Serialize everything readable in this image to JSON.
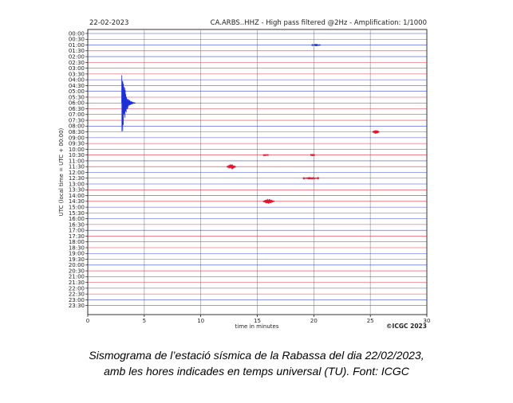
{
  "header": {
    "date": "22-02-2023",
    "station_info": "CA.ARBS..HHZ - High pass filtered @2Hz - Amplification: 1/1000"
  },
  "credit": "©ICGC 2023",
  "caption": {
    "line1": "Sismograma de l’estació sísmica de la Rabassa del dia 22/02/2023,",
    "line2": "amb les hores indicades en temps universal (TU). Font: ICGC"
  },
  "chart_data": {
    "type": "line",
    "title": "CA.ARBS..HHZ - High pass filtered @2Hz - Amplification: 1/1000",
    "xlabel": "time in minutes",
    "ylabel": "UTC (local time = UTC + 00:00)",
    "xlim": [
      0,
      30
    ],
    "x_ticks": [
      0,
      5,
      10,
      15,
      20,
      25,
      30
    ],
    "y_ticks": [
      "00:00",
      "00:30",
      "01:00",
      "01:30",
      "02:00",
      "02:30",
      "03:00",
      "03:30",
      "04:00",
      "04:30",
      "05:00",
      "05:30",
      "06:00",
      "06:30",
      "07:00",
      "07:30",
      "08:00",
      "08:30",
      "09:00",
      "09:30",
      "10:00",
      "10:30",
      "11:00",
      "11:30",
      "12:00",
      "12:30",
      "13:00",
      "13:30",
      "14:00",
      "14:30",
      "15:00",
      "15:30",
      "16:00",
      "16:30",
      "17:00",
      "17:30",
      "18:00",
      "18:30",
      "19:00",
      "19:30",
      "20:00",
      "20:30",
      "21:00",
      "21:30",
      "22:00",
      "22:30",
      "23:00",
      "23:30"
    ],
    "trace_colors": [
      "#1f2fd6",
      "#e3142f"
    ],
    "grid": true,
    "events": [
      {
        "trace": "06:00",
        "minute": 3.0,
        "amplitude_traces": 7.5,
        "duration_min": 1.2
      },
      {
        "trace": "11:30",
        "minute": 12.3,
        "amplitude_traces": 0.5,
        "duration_min": 0.8
      },
      {
        "trace": "14:30",
        "minute": 15.5,
        "amplitude_traces": 0.45,
        "duration_min": 1.0
      },
      {
        "trace": "08:30",
        "minute": 25.2,
        "amplitude_traces": 0.35,
        "duration_min": 0.6
      },
      {
        "trace": "01:00",
        "minute": 19.8,
        "amplitude_traces": 0.2,
        "duration_min": 0.8
      },
      {
        "trace": "12:30",
        "minute": 19.0,
        "amplitude_traces": 0.2,
        "duration_min": 1.5
      },
      {
        "trace": "10:30",
        "minute": 19.7,
        "amplitude_traces": 0.2,
        "duration_min": 0.4
      },
      {
        "trace": "10:30",
        "minute": 15.5,
        "amplitude_traces": 0.15,
        "duration_min": 0.5
      }
    ]
  }
}
